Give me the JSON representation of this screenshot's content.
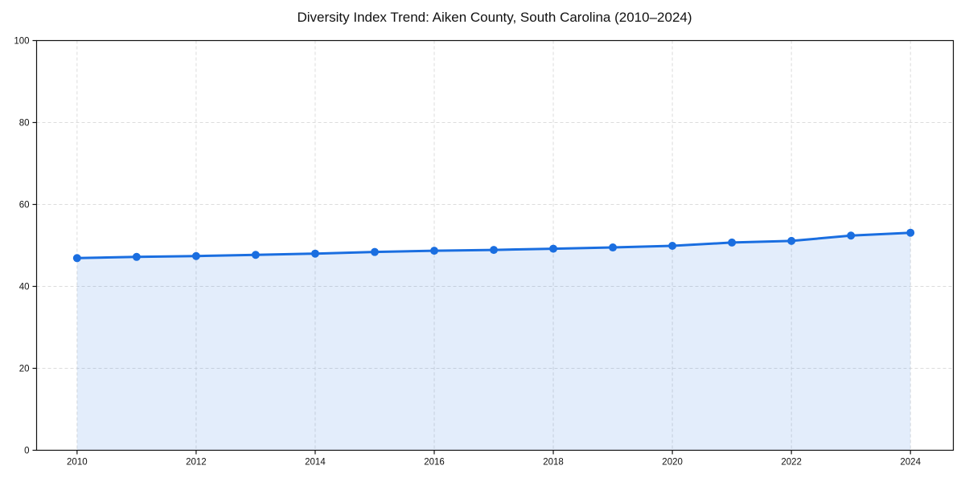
{
  "chart_data": {
    "type": "line",
    "title": "Diversity Index Trend: Aiken County, South Carolina (2010–2024)",
    "xlabel": "",
    "ylabel": "",
    "x": [
      2010,
      2011,
      2012,
      2013,
      2014,
      2015,
      2016,
      2017,
      2018,
      2019,
      2020,
      2021,
      2022,
      2023,
      2024
    ],
    "series": [
      {
        "name": "Diversity Index",
        "values": [
          46.9,
          47.2,
          47.4,
          47.7,
          48.0,
          48.4,
          48.7,
          48.9,
          49.2,
          49.5,
          49.9,
          50.7,
          51.1,
          52.4,
          53.1
        ]
      }
    ],
    "xticks": [
      2010,
      2012,
      2014,
      2016,
      2018,
      2020,
      2022,
      2024
    ],
    "yticks": [
      0,
      20,
      40,
      60,
      80,
      100
    ],
    "xlim": [
      2009.32,
      2024.72
    ],
    "ylim": [
      0,
      100
    ],
    "grid": true,
    "grid_style": "dashed",
    "legend": "none",
    "area_fill": true,
    "marker": "circle",
    "colors": {
      "line": "#1a6ee0",
      "marker": "#1a6ee0",
      "area_fill": "#1a6ee0",
      "area_fill_opacity": 0.12,
      "grid": "#dcdcdc",
      "axis": "#111111",
      "tick_label": "#111111",
      "title": "#111111",
      "background": "#ffffff"
    }
  }
}
